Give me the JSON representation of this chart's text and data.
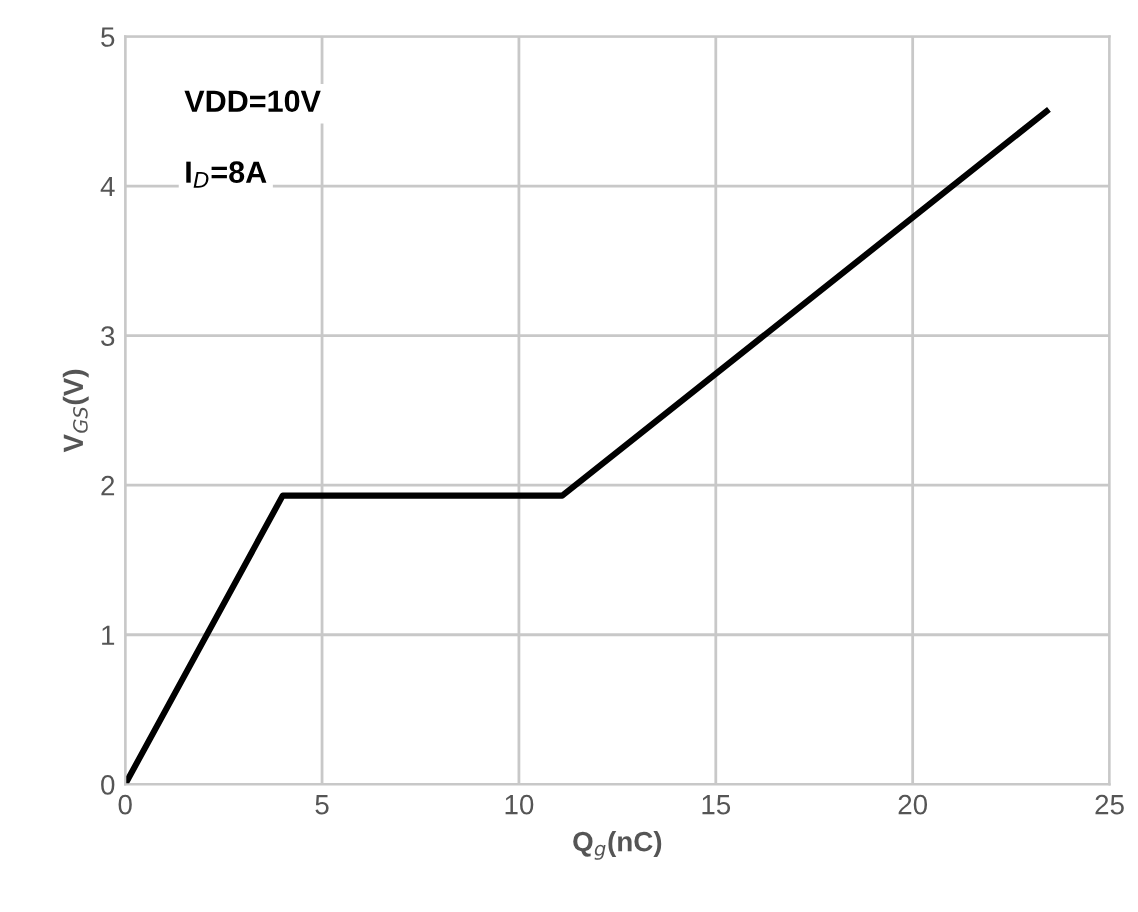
{
  "chart_data": {
    "type": "line",
    "xlabel": "Q$_{g}$(nC)",
    "ylabel": "V$_{GS}$(V)",
    "x": [
      0,
      4,
      11.1,
      23.4
    ],
    "series": [
      {
        "color": "#000000",
        "values": [
          0,
          1.93,
          1.93,
          4.5
        ]
      }
    ],
    "xlim": [
      0,
      25
    ],
    "ylim": [
      0,
      5
    ],
    "xticks": [
      0,
      5,
      10,
      15,
      20,
      25
    ],
    "yticks": [
      0,
      1,
      2,
      3,
      4,
      5
    ],
    "grid": true,
    "marker": "none",
    "line_style": "solid",
    "annotations": [
      "VDD=10V",
      "I$_{D}$=8A"
    ]
  }
}
